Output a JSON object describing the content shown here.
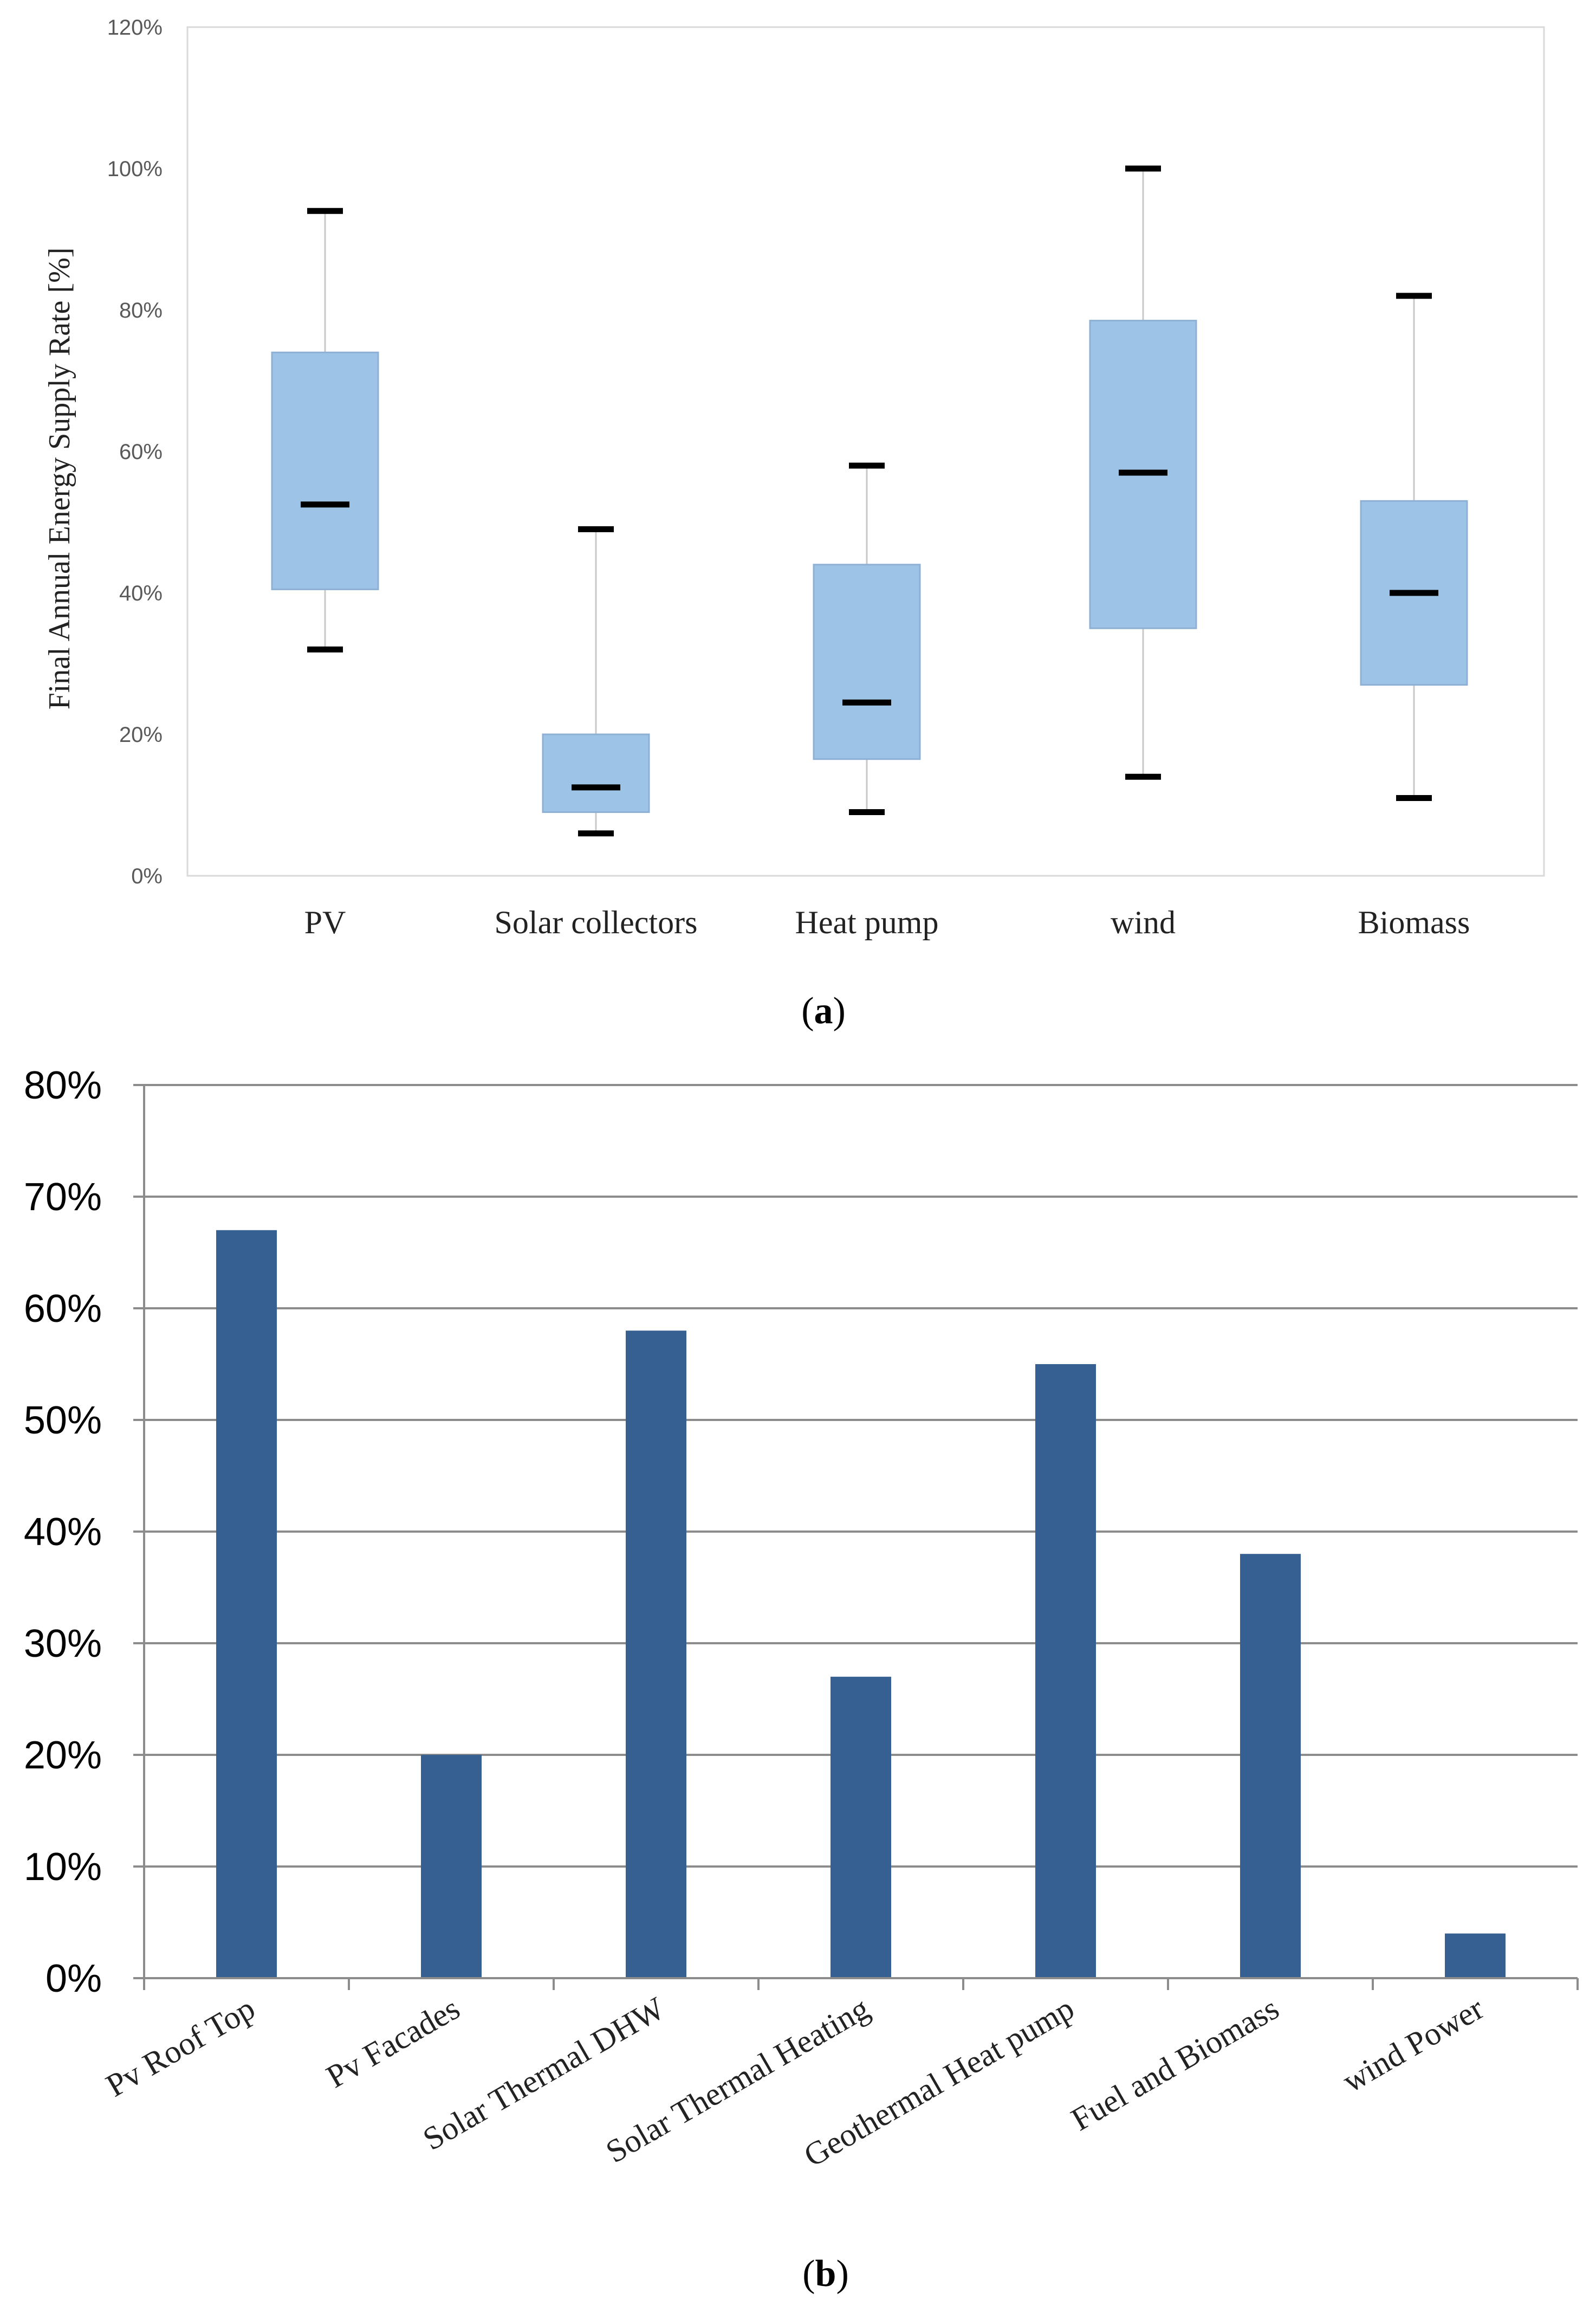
{
  "chart_data": [
    {
      "type": "box",
      "caption_open": "(",
      "caption_letter": "a",
      "caption_close": ")",
      "ylabel": "Final Annual Energy Supply Rate [%]",
      "ylim": [
        0,
        120
      ],
      "ytick_values": [
        0,
        20,
        40,
        60,
        80,
        100,
        120
      ],
      "ytick_labels": [
        "0%",
        "20%",
        "40%",
        "60%",
        "80%",
        "100%",
        "120%"
      ],
      "categories": [
        "PV",
        "Solar collectors",
        "Heat pump",
        "wind",
        "Biomass"
      ],
      "boxes": [
        {
          "min": 32,
          "q1": 40.5,
          "median": 52.5,
          "q3": 74,
          "max": 94
        },
        {
          "min": 6,
          "q1": 9,
          "median": 12.5,
          "q3": 20,
          "max": 49
        },
        {
          "min": 9,
          "q1": 16.5,
          "median": 24.5,
          "q3": 44,
          "max": 58
        },
        {
          "min": 14,
          "q1": 35,
          "median": 57,
          "q3": 78.5,
          "max": 100
        },
        {
          "min": 11,
          "q1": 27,
          "median": 40,
          "q3": 53,
          "max": 82
        }
      ],
      "box_color": "#9dc3e6",
      "box_edge_color": "#8db0d4",
      "grid": false
    },
    {
      "type": "bar",
      "caption_open": "(",
      "caption_letter": "b",
      "caption_close": ")",
      "ylim": [
        0,
        80
      ],
      "ytick_values": [
        0,
        10,
        20,
        30,
        40,
        50,
        60,
        70,
        80
      ],
      "ytick_labels": [
        "0%",
        "10%",
        "20%",
        "30%",
        "40%",
        "50%",
        "60%",
        "70%",
        "80%"
      ],
      "categories": [
        "Pv Roof Top",
        "Pv Facades",
        "Solar Thermal DHW",
        "Solar Thermal Heating",
        "Geothermal Heat pump",
        "Fuel and Biomass",
        "wind  Power"
      ],
      "values": [
        67,
        20,
        58,
        27,
        55,
        38,
        4
      ],
      "bar_color": "#376092",
      "grid": true
    }
  ]
}
